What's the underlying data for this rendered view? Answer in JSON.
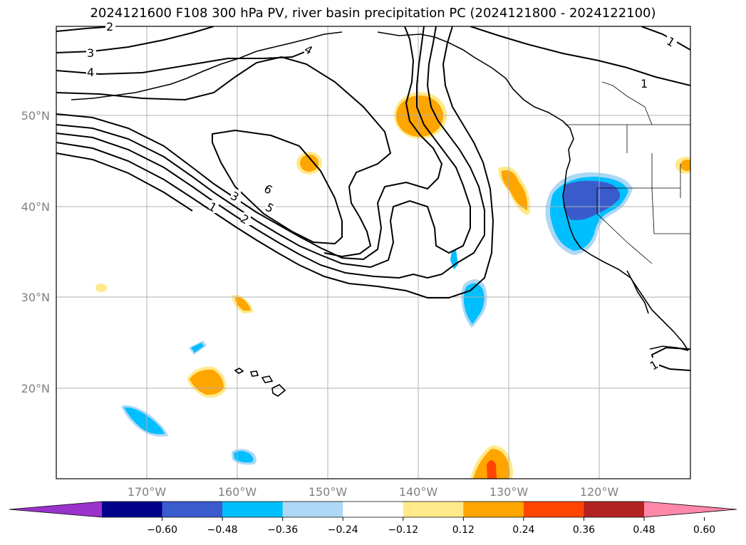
{
  "title": "2024121600 F108 300 hPa PV, river basin precipitation PC (2024121800 - 2024122100)",
  "lat_labels": [
    "50°N",
    "40°N",
    "30°N",
    "20°N"
  ],
  "lon_labels": [
    "170°W",
    "160°W",
    "150°W",
    "140°W",
    "130°W",
    "120°W"
  ],
  "colorbar": {
    "ticks": [
      "−0.60",
      "−0.48",
      "−0.36",
      "−0.24",
      "−0.12",
      "0.12",
      "0.24",
      "0.36",
      "0.48",
      "0.60"
    ],
    "colors": [
      "#9933cc",
      "#00008b",
      "#3a5bcc",
      "#00bfff",
      "#add8f5",
      "#ffffff",
      "#ffe98a",
      "#ffa500",
      "#ff4500",
      "#b22222",
      "#ff88aa"
    ]
  },
  "contour_labels": [
    "2",
    "3",
    "4",
    "4",
    "1",
    "1",
    "6",
    "3",
    "5",
    "1",
    "2",
    "1"
  ],
  "map_data": {
    "projection": "plate-carree",
    "extent": {
      "lon": [
        -180,
        -110
      ],
      "lat": [
        10,
        60
      ]
    },
    "pv_contour_levels": [
      1,
      2,
      3,
      4,
      5,
      6
    ]
  }
}
